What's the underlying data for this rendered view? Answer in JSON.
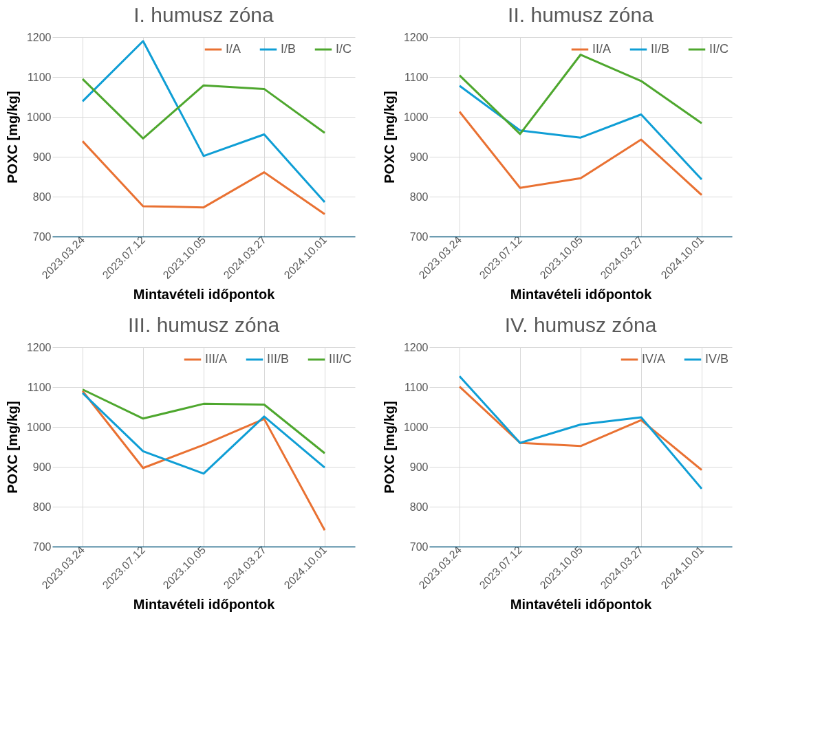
{
  "chart_data": [
    {
      "type": "line",
      "title": "I. humusz zóna",
      "xlabel": "Mintavételi időpontok",
      "ylabel": "POXC [mg/kg]",
      "categories": [
        "2023.03.24",
        "2023.07.12",
        "2023.10.05",
        "2024.03.27",
        "2024.10.01"
      ],
      "ylim": [
        700,
        1200
      ],
      "yticks": [
        700,
        800,
        900,
        1000,
        1100,
        1200
      ],
      "grid": true,
      "legend": "top right",
      "series": [
        {
          "name": "I/A",
          "color": "#e97132",
          "values": [
            939,
            776,
            773,
            861,
            756
          ]
        },
        {
          "name": "I/B",
          "color": "#0f9ed5",
          "values": [
            1039,
            1190,
            902,
            956,
            786
          ]
        },
        {
          "name": "I/C",
          "color": "#4ea72e",
          "values": [
            1095,
            946,
            1079,
            1070,
            960
          ]
        }
      ]
    },
    {
      "type": "line",
      "title": "II. humusz zóna",
      "xlabel": "Mintavételi időpontok",
      "ylabel": "POXC [mg/kg]",
      "categories": [
        "2023.03.24",
        "2023.07.12",
        "2023.10.05",
        "2024.03.27",
        "2024.10.01"
      ],
      "ylim": [
        700,
        1200
      ],
      "yticks": [
        700,
        800,
        900,
        1000,
        1100,
        1200
      ],
      "grid": true,
      "legend": "top right",
      "series": [
        {
          "name": "II/A",
          "color": "#e97132",
          "values": [
            1013,
            822,
            846,
            943,
            804
          ]
        },
        {
          "name": "II/B",
          "color": "#0f9ed5",
          "values": [
            1078,
            966,
            948,
            1006,
            843
          ]
        },
        {
          "name": "II/C",
          "color": "#4ea72e",
          "values": [
            1104,
            957,
            1156,
            1090,
            984
          ]
        }
      ]
    },
    {
      "type": "line",
      "title": "III. humusz zóna",
      "xlabel": "Mintavételi időpontok",
      "ylabel": "POXC [mg/kg]",
      "categories": [
        "2023.03.24",
        "2023.07.12",
        "2023.10.05",
        "2024.03.27",
        "2024.10.01"
      ],
      "ylim": [
        700,
        1200
      ],
      "yticks": [
        700,
        800,
        900,
        1000,
        1100,
        1200
      ],
      "grid": true,
      "legend": "top right",
      "series": [
        {
          "name": "III/A",
          "color": "#e97132",
          "values": [
            1090,
            897,
            955,
            1020,
            741
          ]
        },
        {
          "name": "III/B",
          "color": "#0f9ed5",
          "values": [
            1085,
            939,
            883,
            1026,
            898
          ]
        },
        {
          "name": "III/C",
          "color": "#4ea72e",
          "values": [
            1094,
            1021,
            1058,
            1056,
            934
          ]
        }
      ]
    },
    {
      "type": "line",
      "title": "IV. humusz zóna",
      "xlabel": "Mintavételi időpontok",
      "ylabel": "POXC [mg/kg]",
      "categories": [
        "2023.03.24",
        "2023.07.12",
        "2023.10.05",
        "2024.03.27",
        "2024.10.01"
      ],
      "ylim": [
        700,
        1200
      ],
      "yticks": [
        700,
        800,
        900,
        1000,
        1100,
        1200
      ],
      "grid": true,
      "legend": "top right",
      "series": [
        {
          "name": "IV/A",
          "color": "#e97132",
          "values": [
            1101,
            960,
            952,
            1017,
            892
          ]
        },
        {
          "name": "IV/B",
          "color": "#0f9ed5",
          "values": [
            1127,
            960,
            1006,
            1024,
            845
          ]
        }
      ]
    }
  ]
}
